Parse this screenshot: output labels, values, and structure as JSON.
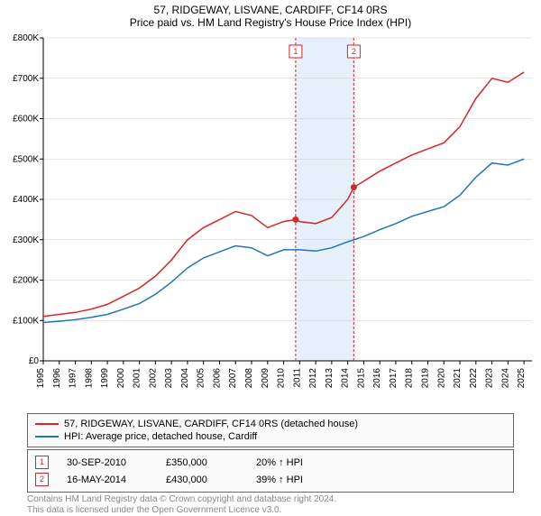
{
  "title": "57, RIDGEWAY, LISVANE, CARDIFF, CF14 0RS",
  "subtitle": "Price paid vs. HM Land Registry's House Price Index (HPI)",
  "chart": {
    "type": "line",
    "background": "#ffffff",
    "gridline_color": "#cccccc",
    "axis_color": "#000000",
    "xlim": [
      1995,
      2025.5
    ],
    "ylim": [
      0,
      800000
    ],
    "ytick_step": 100000,
    "y_ticks": [
      "£0",
      "£100K",
      "£200K",
      "£300K",
      "£400K",
      "£500K",
      "£600K",
      "£700K",
      "£800K"
    ],
    "x_ticks": [
      1995,
      1996,
      1997,
      1998,
      1999,
      2000,
      2001,
      2002,
      2003,
      2004,
      2005,
      2006,
      2007,
      2008,
      2009,
      2010,
      2011,
      2012,
      2013,
      2014,
      2015,
      2016,
      2017,
      2018,
      2019,
      2020,
      2021,
      2022,
      2023,
      2024,
      2025
    ],
    "highlight_band": {
      "xmin": 2010.75,
      "xmax": 2014.38,
      "color": "#e6f0fa"
    },
    "series": [
      {
        "name": "property",
        "label": "57, RIDGEWAY, LISVANE, CARDIFF, CF14 0RS (detached house)",
        "color": "#d62728",
        "line_width": 1.5,
        "data": [
          [
            1995,
            110000
          ],
          [
            1996,
            115000
          ],
          [
            1997,
            120000
          ],
          [
            1998,
            128000
          ],
          [
            1999,
            140000
          ],
          [
            2000,
            160000
          ],
          [
            2001,
            180000
          ],
          [
            2002,
            210000
          ],
          [
            2003,
            250000
          ],
          [
            2004,
            300000
          ],
          [
            2005,
            330000
          ],
          [
            2006,
            350000
          ],
          [
            2007,
            370000
          ],
          [
            2008,
            360000
          ],
          [
            2009,
            330000
          ],
          [
            2010,
            345000
          ],
          [
            2010.75,
            350000
          ],
          [
            2011,
            345000
          ],
          [
            2012,
            340000
          ],
          [
            2013,
            355000
          ],
          [
            2014,
            400000
          ],
          [
            2014.38,
            430000
          ],
          [
            2015,
            445000
          ],
          [
            2016,
            470000
          ],
          [
            2017,
            490000
          ],
          [
            2018,
            510000
          ],
          [
            2019,
            525000
          ],
          [
            2020,
            540000
          ],
          [
            2021,
            580000
          ],
          [
            2022,
            650000
          ],
          [
            2023,
            700000
          ],
          [
            2024,
            690000
          ],
          [
            2025,
            715000
          ]
        ]
      },
      {
        "name": "hpi",
        "label": "HPI: Average price, detached house, Cardiff",
        "color": "#1f77b4",
        "line_width": 1.5,
        "data": [
          [
            1995,
            95000
          ],
          [
            1996,
            98000
          ],
          [
            1997,
            102000
          ],
          [
            1998,
            108000
          ],
          [
            1999,
            115000
          ],
          [
            2000,
            128000
          ],
          [
            2001,
            142000
          ],
          [
            2002,
            165000
          ],
          [
            2003,
            195000
          ],
          [
            2004,
            230000
          ],
          [
            2005,
            255000
          ],
          [
            2006,
            270000
          ],
          [
            2007,
            285000
          ],
          [
            2008,
            280000
          ],
          [
            2009,
            260000
          ],
          [
            2010,
            275000
          ],
          [
            2011,
            275000
          ],
          [
            2012,
            272000
          ],
          [
            2013,
            280000
          ],
          [
            2014,
            295000
          ],
          [
            2015,
            308000
          ],
          [
            2016,
            325000
          ],
          [
            2017,
            340000
          ],
          [
            2018,
            358000
          ],
          [
            2019,
            370000
          ],
          [
            2020,
            382000
          ],
          [
            2021,
            410000
          ],
          [
            2022,
            455000
          ],
          [
            2023,
            490000
          ],
          [
            2024,
            485000
          ],
          [
            2025,
            500000
          ]
        ]
      }
    ],
    "sale_markers": [
      {
        "num": "1",
        "x": 2010.75,
        "point_y": 350000,
        "color": "#d62728"
      },
      {
        "num": "2",
        "x": 2014.38,
        "point_y": 430000,
        "color": "#d62728"
      }
    ]
  },
  "legend": {
    "series1": "57, RIDGEWAY, LISVANE, CARDIFF, CF14 0RS (detached house)",
    "series2": "HPI: Average price, detached house, Cardiff"
  },
  "transactions": [
    {
      "num": "1",
      "date": "30-SEP-2010",
      "price": "£350,000",
      "delta": "20% ↑ HPI"
    },
    {
      "num": "2",
      "date": "16-MAY-2014",
      "price": "£430,000",
      "delta": "39% ↑ HPI"
    }
  ],
  "license": {
    "line1": "Contains HM Land Registry data © Crown copyright and database right 2024.",
    "line2": "This data is licensed under the Open Government Licence v3.0."
  }
}
